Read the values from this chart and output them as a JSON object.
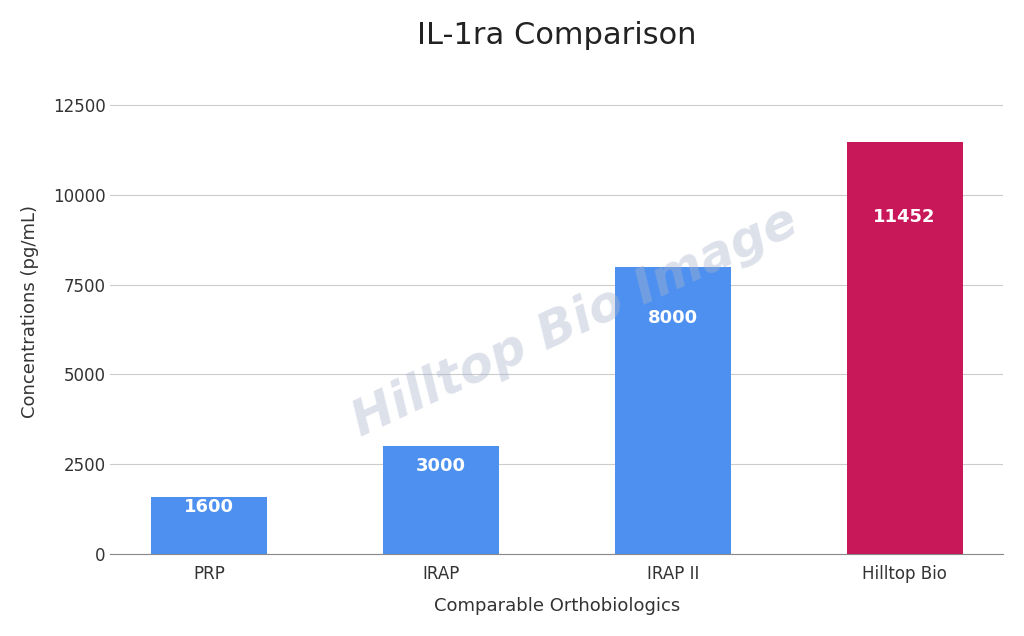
{
  "title": "IL-1ra Comparison",
  "categories": [
    "PRP",
    "IRAP",
    "IRAP II",
    "Hilltop Bio"
  ],
  "values": [
    1600,
    3000,
    8000,
    11452
  ],
  "bar_colors": [
    "#4d90f0",
    "#4d90f0",
    "#4d90f0",
    "#c8185a"
  ],
  "bar_labels": [
    "1600",
    "3000",
    "8000",
    "11452"
  ],
  "xlabel": "Comparable Orthobiologics",
  "ylabel": "Concentrations (pg/mL)",
  "ylim": [
    0,
    13500
  ],
  "yticks": [
    0,
    2500,
    5000,
    7500,
    10000,
    12500
  ],
  "title_fontsize": 22,
  "axis_label_fontsize": 13,
  "tick_fontsize": 12,
  "bar_label_fontsize": 13,
  "background_color": "#ffffff",
  "watermark_text": "Hilltop Bio Image",
  "watermark_color": "#aab4cc",
  "watermark_alpha": 0.4,
  "watermark_fontsize": 36,
  "watermark_rotation": 25
}
